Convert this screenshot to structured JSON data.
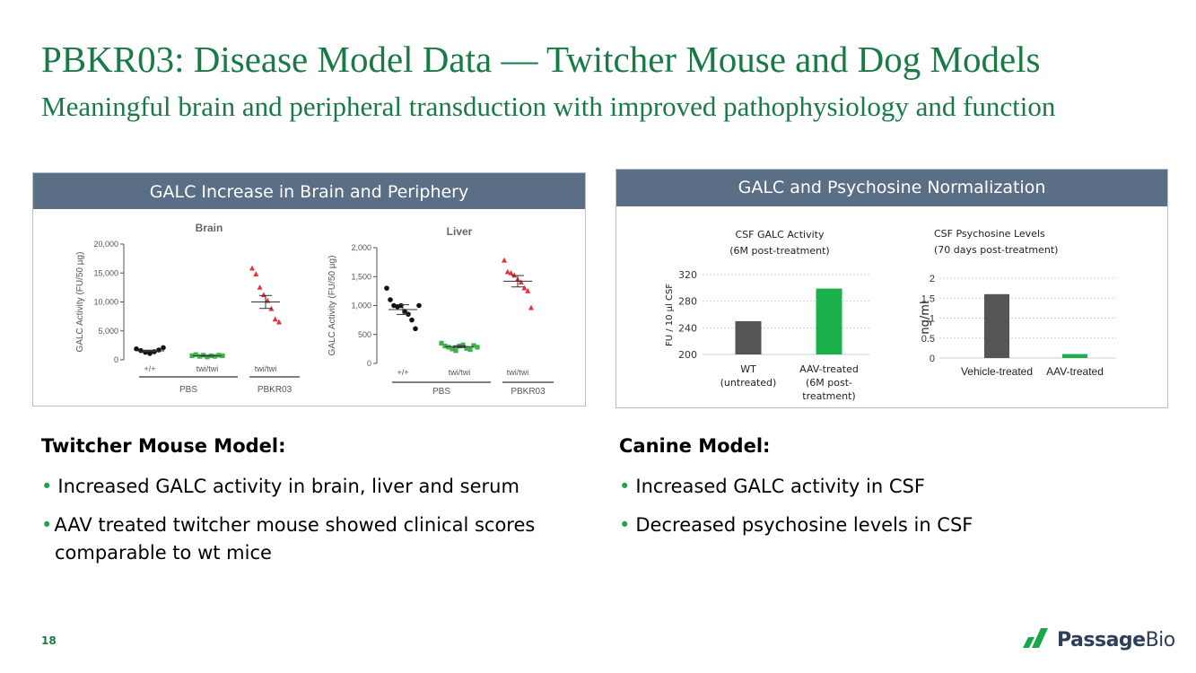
{
  "page": {
    "title": "PBKR03: Disease Model Data — Twitcher Mouse and Dog Models",
    "subtitle": "Meaningful brain and peripheral transduction with improved pathophysiology and function",
    "page_number": "18"
  },
  "left_panel": {
    "header": "GALC Increase in Brain and Periphery"
  },
  "right_panel": {
    "header": "GALC and Psychosine Normalization"
  },
  "mouse_section": {
    "heading": "Twitcher Mouse Model:",
    "bullets": [
      "Increased GALC activity in brain, liver and serum",
      "AAV treated twitcher mouse showed clinical scores comparable to wt mice"
    ]
  },
  "canine_section": {
    "heading": "Canine Model:",
    "bullets": [
      "Increased GALC activity in CSF",
      "Decreased psychosine levels in CSF"
    ]
  },
  "logo": {
    "name_part1": "Passage",
    "name_part2": "Bio",
    "colors": [
      "#1aa64a",
      "#2e3f56"
    ]
  },
  "colors": {
    "title_green": "#1a7a46",
    "header_blue": "#5a6e86",
    "bar_dark": "#555555",
    "bar_green": "#1ab04c",
    "pbs_green": "#3cb44b",
    "pbkr_red": "#e8303a"
  },
  "chart_data": [
    {
      "type": "scatter",
      "title": "Brain",
      "ylabel": "GALC Activity (FU/50 µg)",
      "ylim": [
        0,
        20000
      ],
      "yticks": [
        "0",
        "5,000",
        "10,000",
        "15,000",
        "20,000"
      ],
      "categories": [
        "+/+",
        "twi/twi",
        "twi/twi"
      ],
      "groups": [
        "PBS",
        "PBKR03"
      ],
      "series": [
        {
          "name": "PBS +/+",
          "marker": "circle",
          "color": "#111111",
          "values": [
            1900,
            1600,
            1300,
            1100,
            1400,
            1700,
            2100
          ],
          "mean": 1550
        },
        {
          "name": "PBS twi/twi",
          "marker": "square",
          "color": "#3cb44b",
          "values": [
            700,
            900,
            600,
            800,
            500,
            700,
            600,
            800,
            700
          ],
          "mean": 700
        },
        {
          "name": "PBKR03 twi/twi",
          "marker": "triangle",
          "color": "#e8303a",
          "values": [
            15800,
            14800,
            12500,
            11200,
            10200,
            8800,
            7000,
            6500
          ],
          "mean": 10000
        }
      ]
    },
    {
      "type": "scatter",
      "title": "Liver",
      "ylabel": "GALC Activity (FU/50 µg)",
      "ylim": [
        0,
        2000
      ],
      "yticks": [
        "0",
        "500",
        "1,000",
        "1,500",
        "2,000"
      ],
      "categories": [
        "+/+",
        "twi/twi",
        "twi/twi"
      ],
      "groups": [
        "PBS",
        "PBKR03"
      ],
      "series": [
        {
          "name": "PBS +/+",
          "marker": "circle",
          "color": "#111111",
          "values": [
            1300,
            1100,
            1000,
            980,
            1000,
            900,
            850,
            750,
            600,
            1000
          ],
          "mean": 930
        },
        {
          "name": "PBS twi/twi",
          "marker": "square",
          "color": "#3cb44b",
          "values": [
            350,
            300,
            280,
            250,
            220,
            300,
            320,
            260,
            240,
            310,
            280
          ],
          "mean": 290
        },
        {
          "name": "PBKR03 twi/twi",
          "marker": "triangle",
          "color": "#e8303a",
          "values": [
            1780,
            1580,
            1560,
            1520,
            1450,
            1400,
            1300,
            1250,
            960
          ],
          "mean": 1420
        }
      ]
    },
    {
      "type": "bar",
      "title": "CSF GALC Activity\n(6M post-treatment)",
      "title_lines": [
        "CSF GALC Activity",
        "(6M post-treatment)"
      ],
      "ylabel": "FU / 10 µl CSF",
      "ylim": [
        200,
        320
      ],
      "yticks": [
        "200",
        "240",
        "280",
        "320"
      ],
      "categories": [
        "WT (untreated)",
        "AAV-treated (6M post-treatment)"
      ],
      "category_lines": [
        [
          "WT",
          "(untreated)"
        ],
        [
          "AAV-treated",
          "(6M post-",
          "treatment)"
        ]
      ],
      "values": [
        250,
        299
      ],
      "colors": [
        "#555555",
        "#1ab04c"
      ],
      "grid": true
    },
    {
      "type": "bar",
      "title": "CSF Psychosine Levels\n(70 days post-treatment)",
      "title_lines": [
        "CSF Psychosine Levels",
        "(70 days post-treatment)"
      ],
      "ylabel": "ng/ml",
      "ylim": [
        0,
        2
      ],
      "yticks": [
        "0",
        "0.5",
        "1",
        "1.5",
        "2"
      ],
      "categories": [
        "Vehicle-treated",
        "AAV-treated"
      ],
      "values": [
        1.6,
        0.1
      ],
      "colors": [
        "#555555",
        "#1ab04c"
      ],
      "grid": true
    }
  ]
}
